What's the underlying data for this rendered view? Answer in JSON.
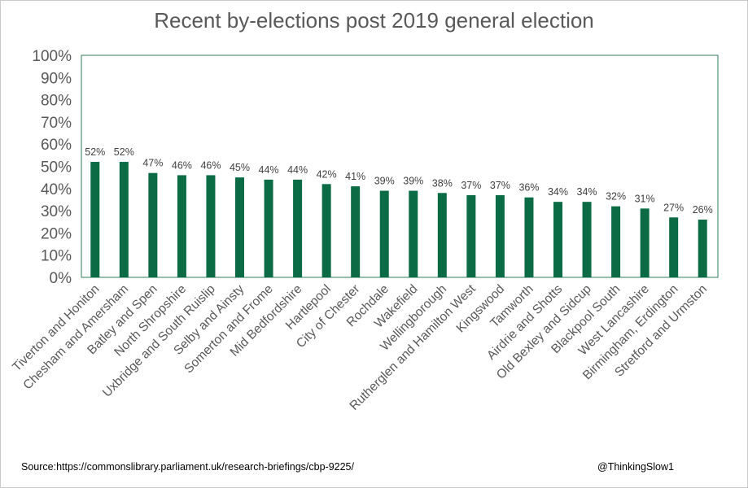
{
  "chart_data": {
    "type": "bar",
    "title": "Recent by-elections post 2019 general election",
    "categories": [
      "Tiverton and Honiton",
      "Chesham and Amersham",
      "Batley and Spen",
      "North Shropshire",
      "Uxbridge and South Ruislip",
      "Selby and Ainsty",
      "Somerton and Frome",
      "Mid Bedfordshire",
      "Hartlepool",
      "City of Chester",
      "Rochdale",
      "Wakefield",
      "Wellingborough",
      "Rutherglen and Hamilton West",
      "Kingswood",
      "Tamworth",
      "Airdrie and Shotts",
      "Old Bexley and Sidcup",
      "Blackpool South",
      "West Lancashire",
      "Birmingham, Erdington",
      "Stretford and Urmston"
    ],
    "values": [
      52,
      52,
      47,
      46,
      46,
      45,
      44,
      44,
      42,
      41,
      39,
      39,
      38,
      37,
      37,
      36,
      34,
      34,
      32,
      31,
      27,
      26
    ],
    "data_labels": [
      "52%",
      "52%",
      "47%",
      "46%",
      "46%",
      "45%",
      "44%",
      "44%",
      "42%",
      "41%",
      "39%",
      "39%",
      "38%",
      "37%",
      "37%",
      "36%",
      "34%",
      "34%",
      "32%",
      "31%",
      "27%",
      "26%"
    ],
    "y_ticks": [
      "0%",
      "10%",
      "20%",
      "30%",
      "40%",
      "50%",
      "60%",
      "70%",
      "80%",
      "90%",
      "100%"
    ],
    "ylim": [
      0,
      100
    ],
    "xlabel": "",
    "ylabel": "",
    "grid": false,
    "bar_color": "#0b6b45",
    "plot_border_color": "#2e7d5b"
  },
  "footer": {
    "source": "Source:https://commonslibrary.parliament.uk/research-briefings/cbp-9225/",
    "handle": "@ThinkingSlow1"
  }
}
